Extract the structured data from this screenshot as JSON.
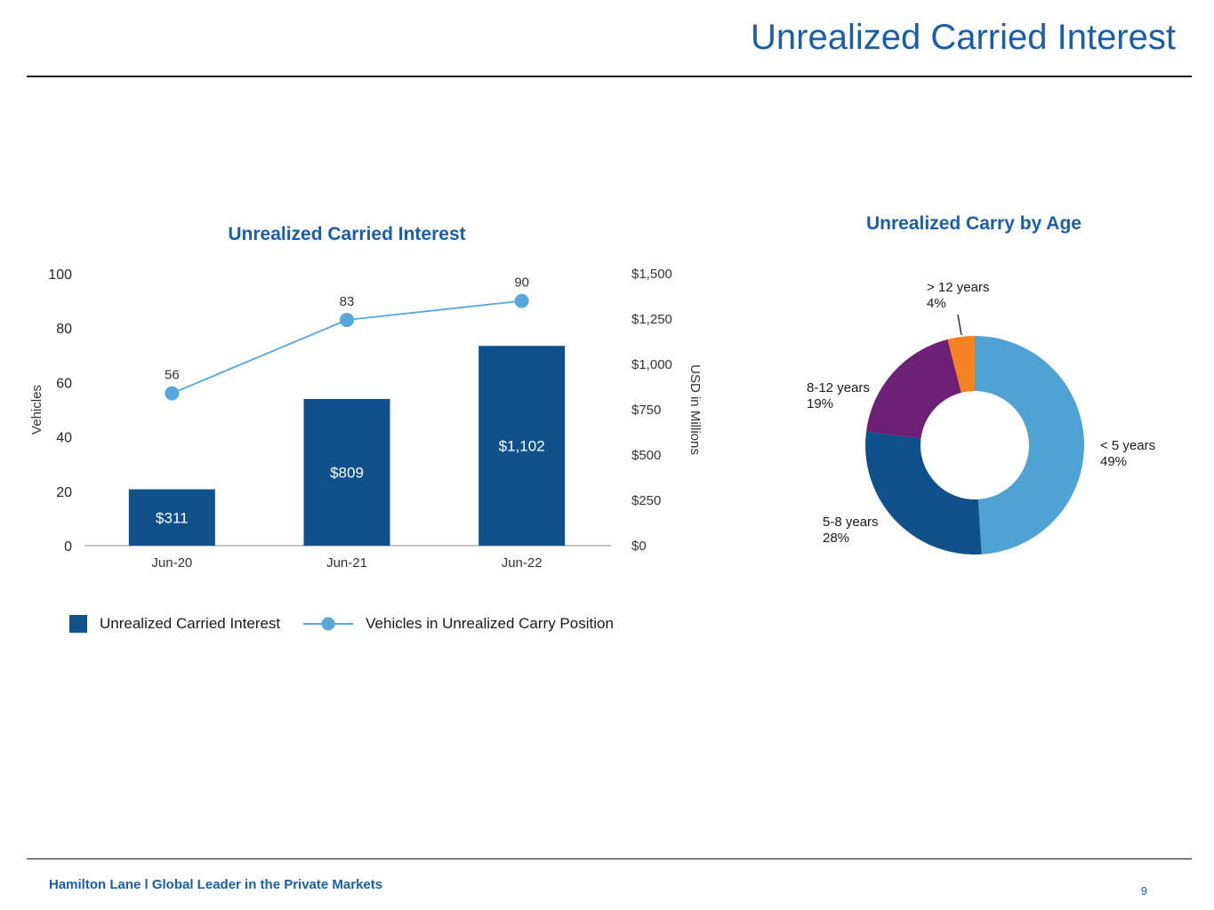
{
  "page": {
    "title": "Unrealized Carried Interest",
    "footer_text": "Hamilton Lane l Global Leader in the Private Markets",
    "page_number": "9"
  },
  "colors": {
    "brand_blue": "#1A5EA8",
    "bar_blue": "#10518B",
    "line_blue": "#56A8DC",
    "donut_light_blue": "#4FA3D4",
    "donut_dark_blue": "#10518B",
    "donut_purple": "#6E2077",
    "donut_orange": "#F58220"
  },
  "chart_data": [
    {
      "type": "bar",
      "title": "Unrealized Carried Interest",
      "categories": [
        "Jun-20",
        "Jun-21",
        "Jun-22"
      ],
      "series": [
        {
          "name": "Unrealized Carried Interest",
          "type": "bar",
          "axis": "right",
          "values": [
            311,
            809,
            1102
          ],
          "labels": [
            "$311",
            "$809",
            "$1,102"
          ],
          "color": "#10518B"
        },
        {
          "name": "Vehicles in Unrealized Carry Position",
          "type": "line",
          "axis": "left",
          "values": [
            56,
            83,
            90
          ],
          "labels": [
            "56",
            "83",
            "90"
          ],
          "color": "#56A8DC"
        }
      ],
      "left_axis": {
        "label": "Vehicles",
        "min": 0,
        "max": 100,
        "ticks": [
          "0",
          "20",
          "40",
          "60",
          "80",
          "100"
        ]
      },
      "right_axis": {
        "label": "USD in Millions",
        "min": 0,
        "max": 1500,
        "ticks": [
          "$0",
          "$250",
          "$500",
          "$750",
          "$1,000",
          "$1,250",
          "$1,500"
        ]
      },
      "grid": false,
      "legend_position": "bottom"
    },
    {
      "type": "pie",
      "title": "Unrealized Carry by Age",
      "donut": true,
      "slices": [
        {
          "label": "< 5 years",
          "value": 49,
          "pct_label": "49%",
          "color": "#4FA3D4"
        },
        {
          "label": "5-8 years",
          "value": 28,
          "pct_label": "28%",
          "color": "#10518B"
        },
        {
          "label": "8-12 years",
          "value": 19,
          "pct_label": "19%",
          "color": "#6E2077"
        },
        {
          "label": "> 12 years",
          "value": 4,
          "pct_label": "4%",
          "color": "#F58220"
        }
      ]
    }
  ]
}
